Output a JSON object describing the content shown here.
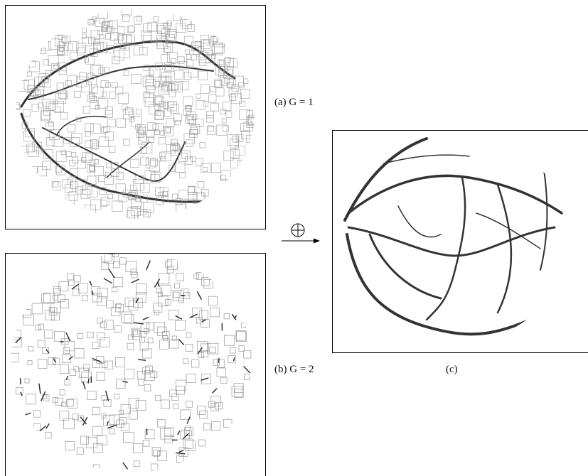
{
  "figure": {
    "panels": [
      {
        "label": "(a) G = 1"
      },
      {
        "label": "(b) G = 2"
      },
      {
        "label": "(c)"
      }
    ]
  }
}
